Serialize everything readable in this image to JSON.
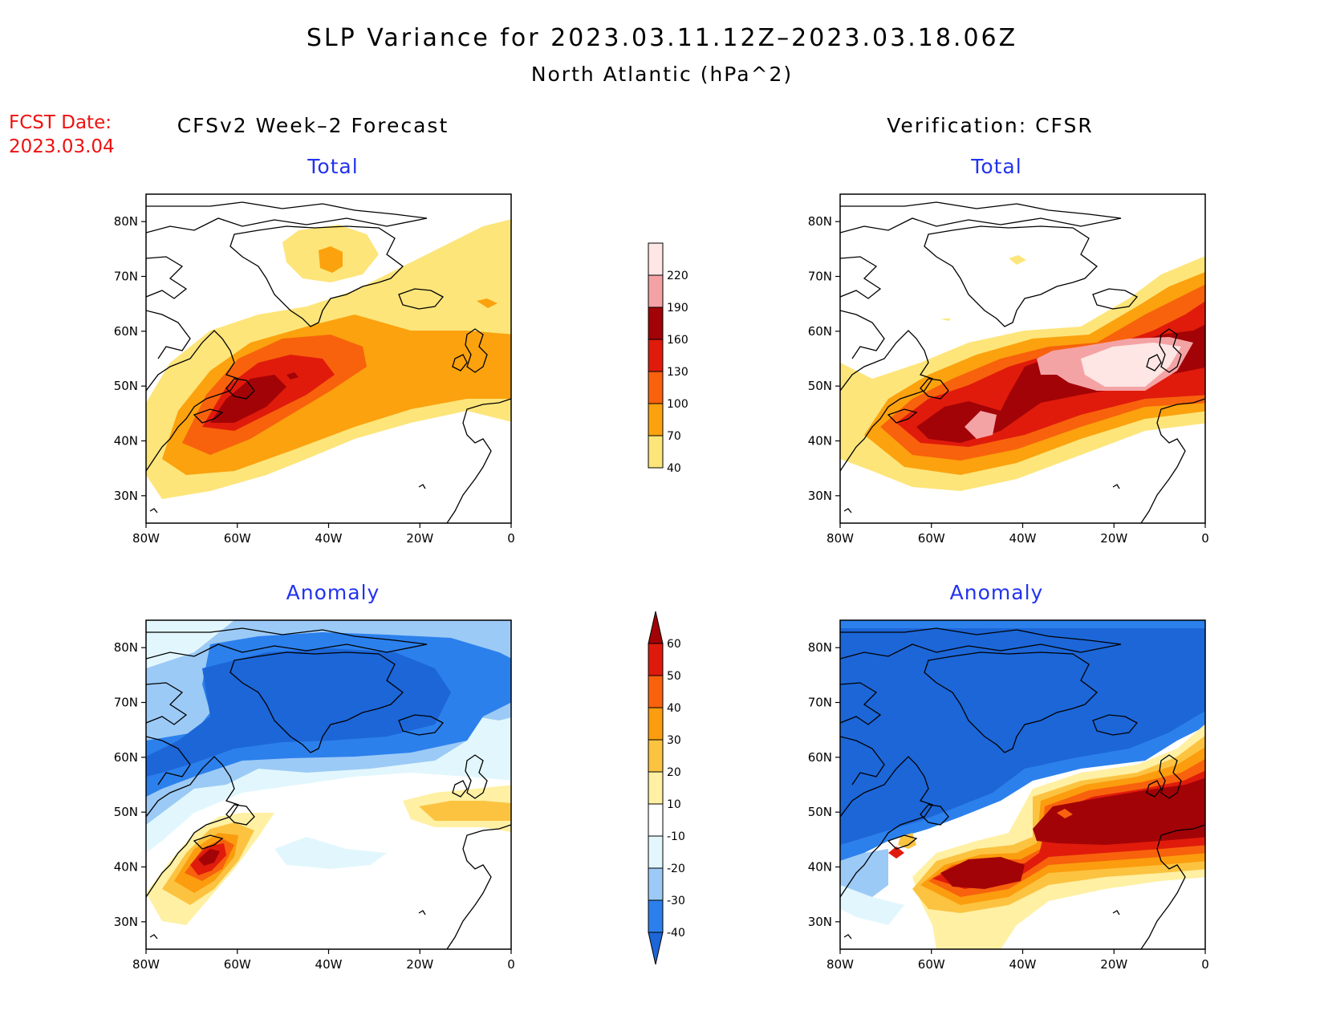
{
  "header": {
    "title": "SLP Variance for 2023.03.11.12Z–2023.03.18.06Z",
    "subtitle": "North Atlantic (hPa^2)"
  },
  "fcst_date": {
    "label": "FCST Date:",
    "value": "2023.03.04"
  },
  "columns": {
    "left": "CFSv2 Week–2 Forecast",
    "right": "Verification: CFSR"
  },
  "panels": {
    "fc_total": "Total",
    "vf_total": "Total",
    "fc_anom": "Anomaly",
    "vf_anom": "Anomaly"
  },
  "axes": {
    "lat_ticks": [
      "80N",
      "70N",
      "60N",
      "50N",
      "40N",
      "30N"
    ],
    "lon_ticks": [
      "80W",
      "60W",
      "40W",
      "20W",
      "0"
    ]
  },
  "colorbar_total": {
    "levels": [
      "40",
      "70",
      "100",
      "130",
      "160",
      "190",
      "220"
    ],
    "colors": [
      "#fde57a",
      "#fba20e",
      "#f8620c",
      "#e01b0c",
      "#a20306",
      "#f4a3a5",
      "#fde6e4"
    ]
  },
  "colorbar_anomaly": {
    "levels": [
      "-40",
      "-30",
      "-20",
      "-10",
      "10",
      "20",
      "30",
      "40",
      "50",
      "60"
    ],
    "colors": [
      "#1c66d8",
      "#2c80ec",
      "#9ccaf6",
      "#e2f7fd",
      "#ffffff",
      "#fff0a3",
      "#fcc341",
      "#fb9d0e",
      "#f8620c",
      "#de1a0c",
      "#a20306"
    ]
  },
  "chart_data": [
    {
      "type": "heatmap",
      "title": "Total",
      "xlabel": "",
      "ylabel": "",
      "x_range": [
        -80,
        0
      ],
      "y_range": [
        25,
        85
      ],
      "levels": [
        40,
        70,
        100,
        130,
        160,
        190,
        220
      ],
      "features": [
        {
          "level": 40,
          "region": "broad band from US east coast to British Isles"
        },
        {
          "level": 40,
          "region": "Greenland 70-75N, 48-30W"
        },
        {
          "level": 70,
          "region": "Greenland summit near 73N 38W"
        },
        {
          "level": 70,
          "region": "band 35-57N, 75W-0"
        },
        {
          "level": 100,
          "region": "Newfoundland to 30W, 38-55N"
        },
        {
          "level": 130,
          "region": "Nova Scotia to 38W, 40-52N"
        },
        {
          "level": 160,
          "region": "Nova Scotia and south, 40-47N 70-58W"
        }
      ]
    },
    {
      "type": "heatmap",
      "title": "Total",
      "xlabel": "",
      "ylabel": "",
      "x_range": [
        -80,
        0
      ],
      "y_range": [
        25,
        85
      ],
      "levels": [
        40,
        70,
        100,
        130,
        160,
        190,
        220
      ],
      "features": [
        {
          "level": 40,
          "region": "band 33-68N from US coast to Norway"
        },
        {
          "level": 70,
          "region": "band 36-66N"
        },
        {
          "level": 100,
          "region": "band 37-63N"
        },
        {
          "level": 130,
          "region": "band 38-60N"
        },
        {
          "level": 160,
          "region": "40-57N, 65W-0"
        },
        {
          "level": 190,
          "region": "50-57N, 38W-5W"
        },
        {
          "level": 220,
          "region": "British Isles region, 47-56N 28W-5W"
        }
      ]
    },
    {
      "type": "heatmap",
      "title": "Anomaly",
      "xlabel": "",
      "ylabel": "",
      "x_range": [
        -80,
        0
      ],
      "y_range": [
        25,
        85
      ],
      "levels": [
        -40,
        -30,
        -20,
        -10,
        10,
        20,
        30,
        40,
        50,
        60
      ],
      "features": [
        {
          "level": -40,
          "region": "Greenland and Labrador, 55-80N"
        },
        {
          "level": -20,
          "region": "Baffin Bay and north Atlantic fringes"
        },
        {
          "level": 10,
          "region": "Newfoundland and Nova Scotia 30-47N"
        },
        {
          "level": 20,
          "region": "near Ireland 45-53N 20-0W"
        },
        {
          "level": 60,
          "region": "Nova Scotia 40-45N 68-60W"
        }
      ]
    },
    {
      "type": "heatmap",
      "title": "Anomaly",
      "xlabel": "",
      "ylabel": "",
      "x_range": [
        -80,
        0
      ],
      "y_range": [
        25,
        85
      ],
      "levels": [
        -40,
        -30,
        -20,
        -10,
        10,
        20,
        30,
        40,
        50,
        60
      ],
      "features": [
        {
          "level": -40,
          "region": "50-85N across basin and Greenland"
        },
        {
          "level": 10,
          "region": "band 28-60N from 60W to 0"
        },
        {
          "level": 60,
          "region": "38-44N 63-43W"
        },
        {
          "level": 60,
          "region": "45-58N 40W-0"
        }
      ]
    }
  ]
}
